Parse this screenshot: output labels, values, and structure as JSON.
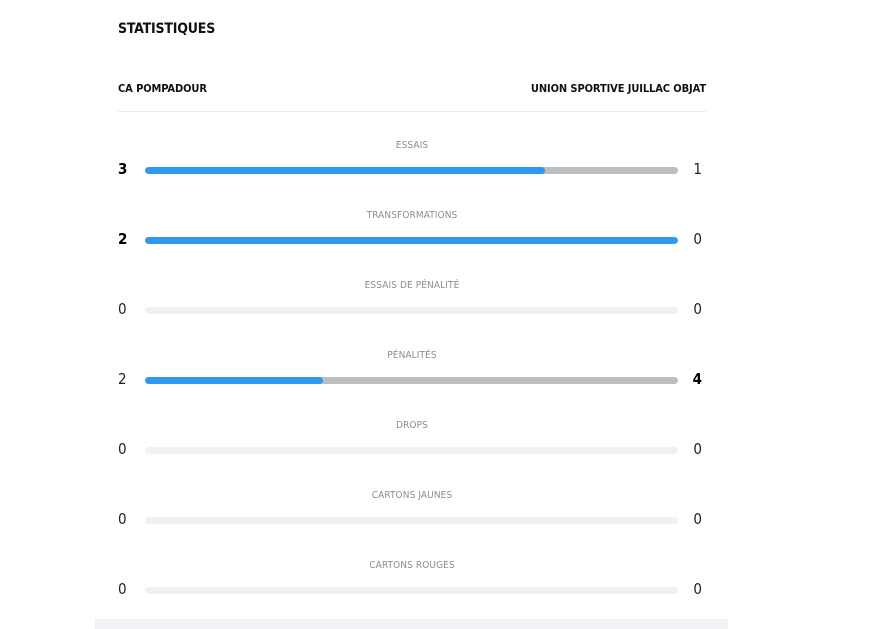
{
  "section_title": "STATISTIQUES",
  "teams": {
    "home": "CA POMPADOUR",
    "away": "UNION SPORTIVE JUILLAC OBJAT"
  },
  "colors": {
    "home_bar": "#2f98f0",
    "away_bar": "#bdbec2",
    "empty_track": "#f0f1f4"
  },
  "stats": [
    {
      "label": "ESSAIS",
      "home": "3",
      "away": "1"
    },
    {
      "label": "TRANSFORMATIONS",
      "home": "2",
      "away": "0"
    },
    {
      "label": "ESSAIS DE PÉNALITÉ",
      "home": "0",
      "away": "0"
    },
    {
      "label": "PÉNALITÉS",
      "home": "2",
      "away": "4"
    },
    {
      "label": "DROPS",
      "home": "0",
      "away": "0"
    },
    {
      "label": "CARTONS JAUNES",
      "home": "0",
      "away": "0"
    },
    {
      "label": "CARTONS ROUGES",
      "home": "0",
      "away": "0"
    }
  ]
}
